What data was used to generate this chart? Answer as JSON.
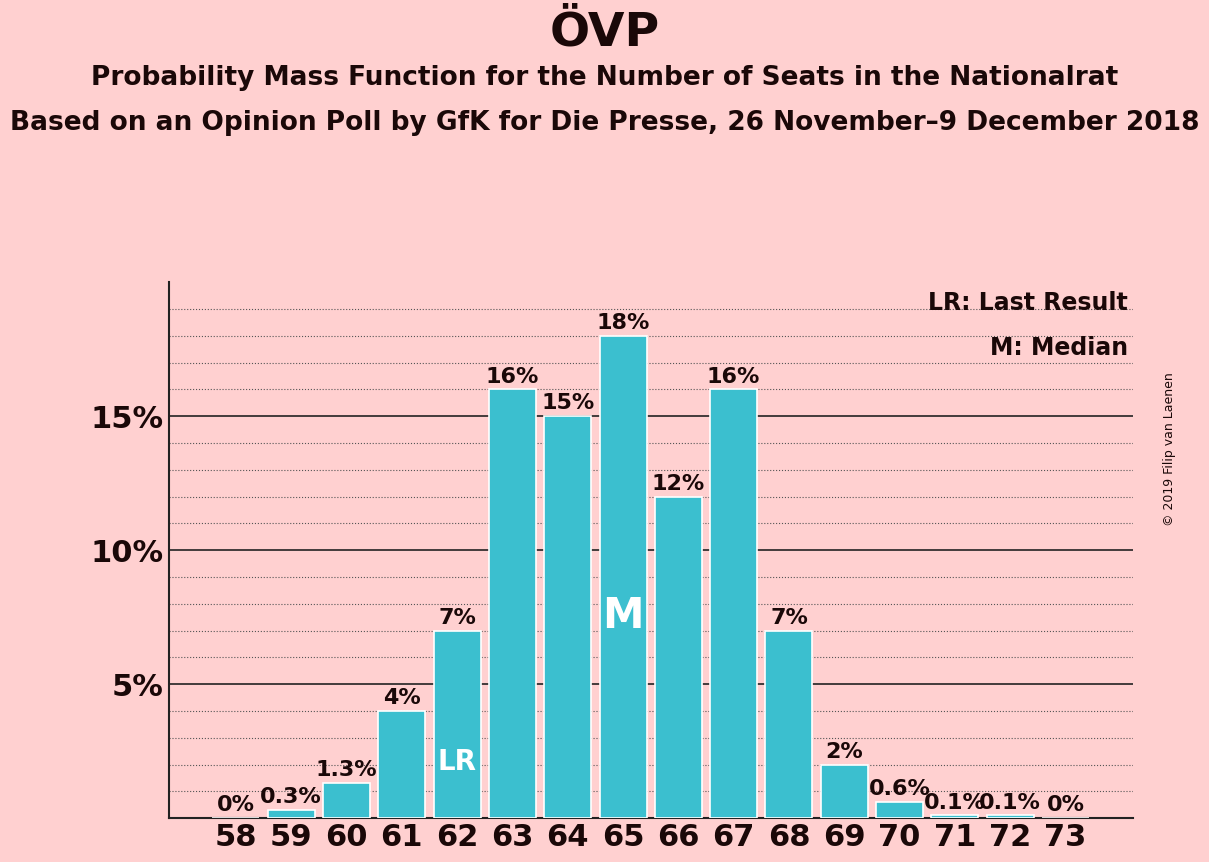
{
  "title": "ÖVP",
  "subtitle1": "Probability Mass Function for the Number of Seats in the Nationalrat",
  "subtitle2": "Based on an Opinion Poll by GfK for Die Presse, 26 November–9 December 2018",
  "watermark": "© 2019 Filip van Laenen",
  "legend_lr": "LR: Last Result",
  "legend_m": "M: Median",
  "categories": [
    58,
    59,
    60,
    61,
    62,
    63,
    64,
    65,
    66,
    67,
    68,
    69,
    70,
    71,
    72,
    73
  ],
  "values": [
    0.0,
    0.3,
    1.3,
    4.0,
    7.0,
    16.0,
    15.0,
    18.0,
    12.0,
    16.0,
    7.0,
    2.0,
    0.6,
    0.1,
    0.1,
    0.0
  ],
  "labels": [
    "0%",
    "0.3%",
    "1.3%",
    "4%",
    "7%",
    "16%",
    "15%",
    "18%",
    "12%",
    "16%",
    "7%",
    "2%",
    "0.6%",
    "0.1%",
    "0.1%",
    "0%"
  ],
  "bar_color": "#3BBFCF",
  "background_color": "#FFD0D0",
  "text_color": "#1a0808",
  "lr_index": 4,
  "m_index": 7,
  "ylim": [
    0,
    20
  ],
  "major_yticks": [
    0,
    5,
    10,
    15,
    20
  ],
  "minor_yticks": [
    1,
    2,
    3,
    4,
    6,
    7,
    8,
    9,
    11,
    12,
    13,
    14,
    16,
    17,
    18,
    19
  ],
  "ytick_labels": [
    "",
    "5%",
    "10%",
    "15%",
    ""
  ],
  "title_fontsize": 34,
  "subtitle_fontsize": 19,
  "axis_fontsize": 22,
  "bar_label_fontsize": 16,
  "lr_fontsize": 20,
  "m_fontsize": 30,
  "legend_fontsize": 17,
  "watermark_fontsize": 9
}
